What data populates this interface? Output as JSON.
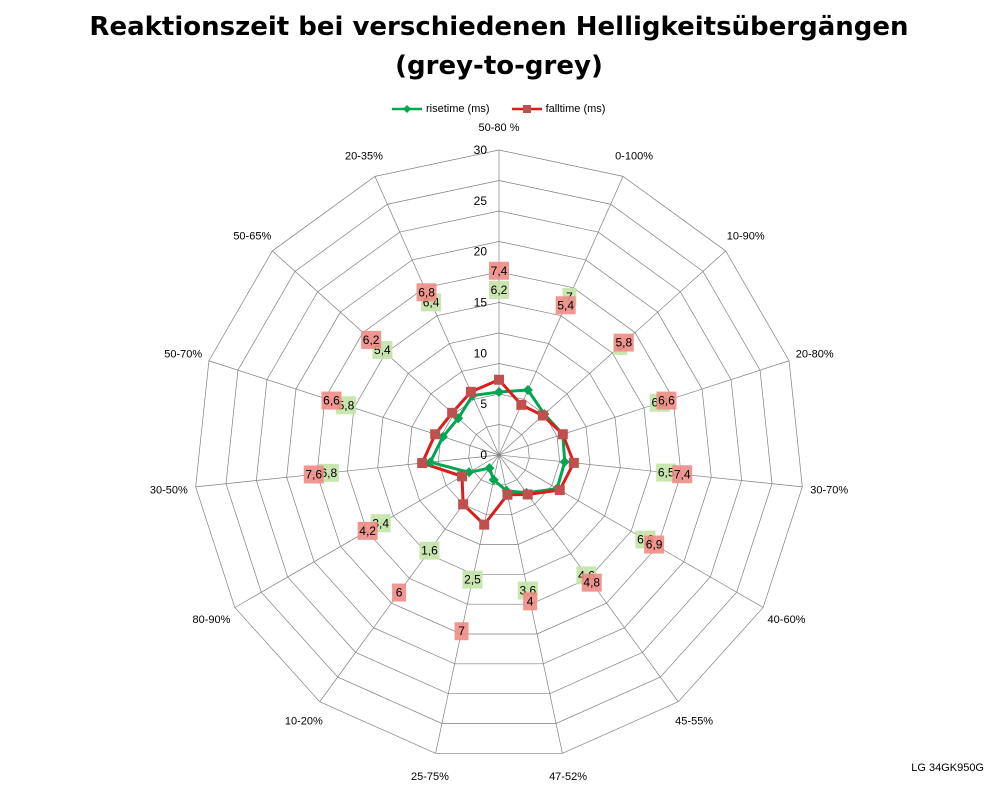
{
  "title_line1": "Reaktionszeit bei verschiedenen Helligkeitsübergängen",
  "title_line2": "(grey-to-grey)",
  "corner_label": "LG 34GK950G",
  "colors": {
    "rise": "#00a650",
    "fall": "#dd1c1c",
    "fall_marker": "#c0504d",
    "grid": "#808080",
    "rise_label_bg": "#c3e3a7",
    "fall_label_bg": "#f08c86"
  },
  "chart_data": {
    "type": "radar",
    "categories": [
      "50-80 %",
      "0-100%",
      "10-90%",
      "20-80%",
      "30-70%",
      "40-60%",
      "45-55%",
      "47-52%",
      "25-75%",
      "10-20%",
      "80-90%",
      "30-50%",
      "50-70%",
      "50-65%",
      "20-35%"
    ],
    "series": [
      {
        "name": "risetime (ms)",
        "values": [
          6.2,
          7,
          6,
          6.6,
          6.5,
          6.6,
          4.6,
          3.6,
          2.5,
          1.6,
          3.4,
          6.8,
          5.8,
          5.4,
          6.4
        ]
      },
      {
        "name": "falltime (ms)",
        "values": [
          7.4,
          5.4,
          5.8,
          6.6,
          7.4,
          6.9,
          4.8,
          4,
          7,
          6,
          4.2,
          7.6,
          6.6,
          6.2,
          6.8
        ]
      }
    ],
    "rlim": [
      0,
      30
    ],
    "ticks": [
      0,
      5,
      10,
      15,
      20,
      25,
      30
    ],
    "rise_labels": [
      "6,2",
      "7",
      "6",
      "6,6",
      "6,5",
      "6,6",
      "4,6",
      "3,6",
      "2,5",
      "1,6",
      "3,4",
      "6,8",
      "5,8",
      "5,4",
      "6,4"
    ],
    "fall_labels": [
      "7,4",
      "5,4",
      "5,8",
      "6,6",
      "7,4",
      "6,9",
      "4,8",
      "4",
      "7",
      "6",
      "4,2",
      "7,6",
      "6,6",
      "6,2",
      "6,8"
    ],
    "grid": true,
    "legend_position": "top"
  }
}
